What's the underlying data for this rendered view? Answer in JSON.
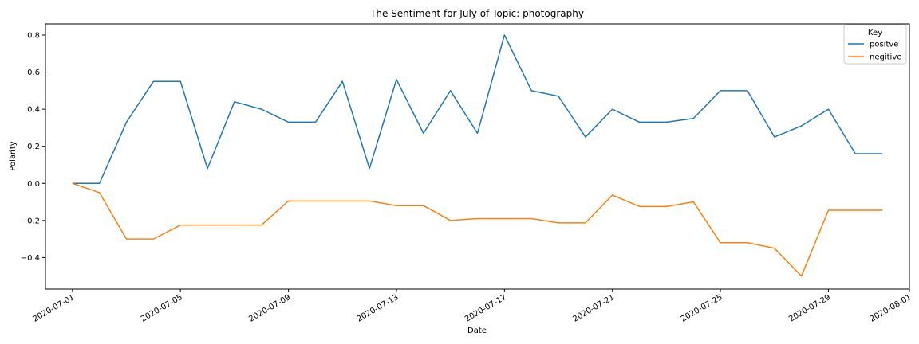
{
  "chart_data": {
    "type": "line",
    "title": "The Sentiment for July of Topic: photography",
    "xlabel": "Date",
    "ylabel": "Polarity",
    "x_ticks": [
      "2020-07-01",
      "2020-07-05",
      "2020-07-09",
      "2020-07-13",
      "2020-07-17",
      "2020-07-21",
      "2020-07-25",
      "2020-07-29",
      "2020-08-01"
    ],
    "y_ticks": [
      "0.8",
      "0.6",
      "0.4",
      "0.2",
      "0.0",
      "−0.2",
      "−0.4"
    ],
    "xlim": [
      "2020-06-30",
      "2020-08-01"
    ],
    "ylim": [
      -0.57,
      0.86
    ],
    "grid": false,
    "legend": {
      "title": "Key",
      "placement": "top-right"
    },
    "x": [
      "2020-07-01",
      "2020-07-02",
      "2020-07-03",
      "2020-07-04",
      "2020-07-05",
      "2020-07-06",
      "2020-07-07",
      "2020-07-08",
      "2020-07-09",
      "2020-07-10",
      "2020-07-11",
      "2020-07-12",
      "2020-07-13",
      "2020-07-14",
      "2020-07-15",
      "2020-07-16",
      "2020-07-17",
      "2020-07-18",
      "2020-07-19",
      "2020-07-20",
      "2020-07-21",
      "2020-07-22",
      "2020-07-23",
      "2020-07-24",
      "2020-07-25",
      "2020-07-26",
      "2020-07-27",
      "2020-07-28",
      "2020-07-29",
      "2020-07-30",
      "2020-07-31"
    ],
    "series": [
      {
        "name": "positve",
        "color": "#1f77b4",
        "values": [
          0.0,
          0.0,
          0.33,
          0.55,
          0.55,
          0.08,
          0.44,
          0.4,
          0.33,
          0.33,
          0.55,
          0.08,
          0.56,
          0.27,
          0.5,
          0.27,
          0.8,
          0.5,
          0.47,
          0.25,
          0.4,
          0.33,
          0.33,
          0.35,
          0.5,
          0.5,
          0.25,
          0.31,
          0.4,
          0.16,
          0.16
        ]
      },
      {
        "name": "negitive",
        "color": "#ff7f0e",
        "values": [
          0.0,
          -0.05,
          -0.3,
          -0.3,
          -0.225,
          -0.225,
          -0.225,
          -0.225,
          -0.095,
          -0.095,
          -0.095,
          -0.095,
          -0.12,
          -0.12,
          -0.2,
          -0.19,
          -0.19,
          -0.19,
          -0.213,
          -0.213,
          -0.063,
          -0.125,
          -0.125,
          -0.1,
          -0.32,
          -0.32,
          -0.35,
          -0.5,
          -0.145,
          -0.145,
          -0.145
        ]
      }
    ]
  }
}
